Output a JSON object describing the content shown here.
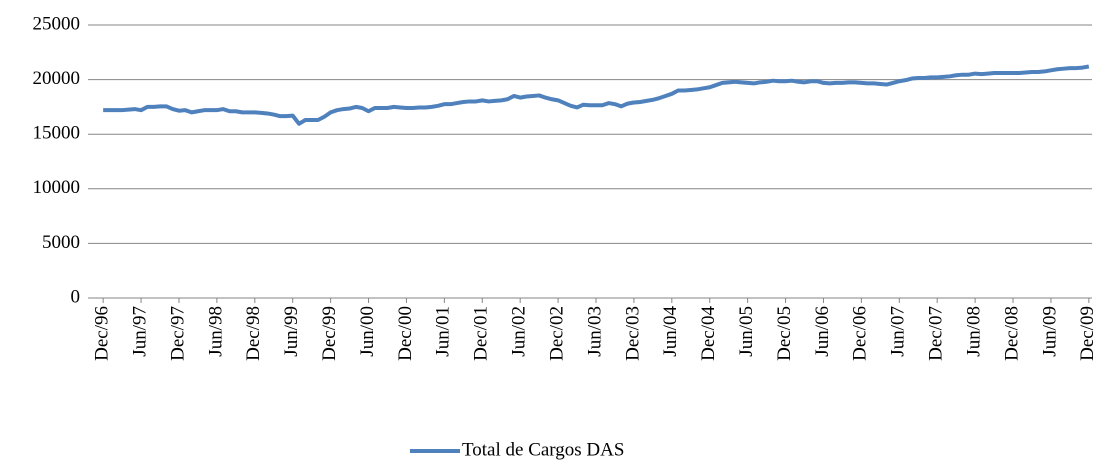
{
  "chart_data": {
    "type": "line",
    "categories": [
      "Dec/96",
      null,
      null,
      null,
      null,
      null,
      "Jun/97",
      null,
      null,
      null,
      null,
      null,
      "Dec/97",
      null,
      null,
      null,
      null,
      null,
      "Jun/98",
      null,
      null,
      null,
      null,
      null,
      "Dec/98",
      null,
      null,
      null,
      null,
      null,
      "Jun/99",
      null,
      null,
      null,
      null,
      null,
      "Dec/99",
      null,
      null,
      null,
      null,
      null,
      "Jun/00",
      null,
      null,
      null,
      null,
      null,
      "Dec/00",
      null,
      null,
      null,
      null,
      null,
      "Jun/01",
      null,
      null,
      null,
      null,
      null,
      "Dec/01",
      null,
      null,
      null,
      null,
      null,
      "Jun/02",
      null,
      null,
      null,
      null,
      null,
      "Dec/02",
      null,
      null,
      null,
      null,
      null,
      "Jun/03",
      null,
      null,
      null,
      null,
      null,
      "Dec/03",
      null,
      null,
      null,
      null,
      null,
      "Jun/04",
      null,
      null,
      null,
      null,
      null,
      "Dec/04",
      null,
      null,
      null,
      null,
      null,
      "Jun/05",
      null,
      null,
      null,
      null,
      null,
      "Dec/05",
      null,
      null,
      null,
      null,
      null,
      "Jun/06",
      null,
      null,
      null,
      null,
      null,
      "Dec/06",
      null,
      null,
      null,
      null,
      null,
      "Jun/07",
      null,
      null,
      null,
      null,
      null,
      "Dec/07",
      null,
      null,
      null,
      null,
      null,
      "Jun/08",
      null,
      null,
      null,
      null,
      null,
      "Dec/08",
      null,
      null,
      null,
      null,
      null,
      "Jun/09",
      null,
      null,
      null,
      null,
      null,
      "Dec/09"
    ],
    "series": [
      {
        "name": "Total de Cargos DAS",
        "color": "#4f81bd",
        "values": [
          17200,
          17200,
          17200,
          17200,
          17250,
          17300,
          17200,
          17500,
          17500,
          17550,
          17550,
          17300,
          17150,
          17200,
          17000,
          17100,
          17200,
          17200,
          17200,
          17300,
          17100,
          17100,
          17000,
          17000,
          17000,
          16950,
          16900,
          16800,
          16650,
          16650,
          16700,
          15950,
          16300,
          16300,
          16300,
          16600,
          17000,
          17200,
          17300,
          17350,
          17500,
          17400,
          17100,
          17400,
          17400,
          17400,
          17500,
          17450,
          17400,
          17400,
          17450,
          17450,
          17500,
          17600,
          17750,
          17750,
          17850,
          17950,
          18000,
          18000,
          18100,
          18000,
          18050,
          18100,
          18200,
          18500,
          18350,
          18450,
          18500,
          18550,
          18350,
          18200,
          18100,
          17850,
          17600,
          17450,
          17700,
          17650,
          17650,
          17650,
          17850,
          17750,
          17550,
          17800,
          17900,
          17950,
          18050,
          18150,
          18300,
          18500,
          18700,
          19000,
          19000,
          19050,
          19100,
          19200,
          19300,
          19500,
          19700,
          19750,
          19800,
          19750,
          19700,
          19650,
          19750,
          19800,
          19900,
          19850,
          19850,
          19900,
          19800,
          19750,
          19850,
          19850,
          19700,
          19650,
          19700,
          19700,
          19750,
          19750,
          19700,
          19650,
          19650,
          19600,
          19550,
          19700,
          19850,
          19950,
          20100,
          20150,
          20150,
          20200,
          20200,
          20250,
          20300,
          20400,
          20450,
          20450,
          20550,
          20500,
          20550,
          20600,
          20600,
          20600,
          20600,
          20600,
          20650,
          20700,
          20700,
          20750,
          20850,
          20950,
          21000,
          21050,
          21050,
          21100,
          21200
        ]
      }
    ],
    "ylim": [
      0,
      25000
    ],
    "yticks": [
      0,
      5000,
      10000,
      15000,
      20000,
      25000
    ],
    "grid": true,
    "legend": "bottom"
  }
}
